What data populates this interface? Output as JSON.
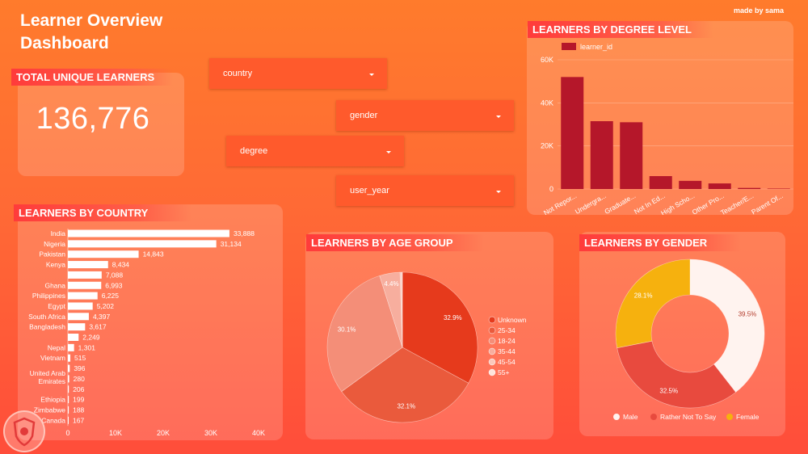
{
  "header": {
    "title_line1": "Learner Overview",
    "title_line2": "Dashboard",
    "made_by": "made by sama"
  },
  "kpi": {
    "label": "TOTAL UNIQUE LEARNERS",
    "value": "136,776"
  },
  "filters": {
    "country": "country",
    "gender": "gender",
    "degree": "degree",
    "user_year": "user_year"
  },
  "logo_icon": "shield-logo-icon",
  "colors": {
    "degree_bar": "#b5172a",
    "age": [
      "#e63a1c",
      "#ea5a3c",
      "#f48e78",
      "#f7ae9e",
      "#fac8bc",
      "#fde4dc"
    ],
    "gender": [
      "#fff3ef",
      "#e84a3e",
      "#f6b10e"
    ]
  },
  "chart_data": [
    {
      "id": "degree",
      "type": "bar",
      "title": "LEARNERS BY DEGREE LEVEL",
      "legend": [
        "learner_id"
      ],
      "categories": [
        "Not Repor...",
        "Undergra...",
        "Graduate...",
        "Not In Ed...",
        "High Scho...",
        "Other Pro...",
        "Teacher/E...",
        "Parent Of..."
      ],
      "values": [
        52000,
        31500,
        31000,
        6000,
        3800,
        2600,
        500,
        200
      ],
      "yticks": [
        "0",
        "20K",
        "40K",
        "60K"
      ],
      "ylim": [
        0,
        60000
      ],
      "grid": true
    },
    {
      "id": "country",
      "type": "bar",
      "orientation": "horizontal",
      "title": "LEARNERS BY COUNTRY",
      "categories": [
        "India",
        "Nigeria",
        "Pakistan",
        "Kenya",
        "",
        "Ghana",
        "Philippines",
        "Egypt",
        "South Africa",
        "Bangladesh",
        "",
        "Nepal",
        "Vietnam",
        "",
        "United Arab Emirates",
        "",
        "Ethiopia",
        "Zimbabwe",
        "Canada"
      ],
      "values": [
        33888,
        31134,
        14843,
        8434,
        7088,
        6993,
        6225,
        5202,
        4397,
        3617,
        2249,
        1301,
        515,
        396,
        280,
        206,
        199,
        188,
        167
      ],
      "labels": [
        "33,888",
        "31,134",
        "14,843",
        "8,434",
        "7,088",
        "6,993",
        "6,225",
        "5,202",
        "4,397",
        "3,617",
        "2,249",
        "1,301",
        "515",
        "396",
        "280",
        "206",
        "199",
        "188",
        "167"
      ],
      "xticks": [
        "0",
        "10K",
        "20K",
        "30K",
        "40K"
      ],
      "xlim": [
        0,
        40000
      ]
    },
    {
      "id": "age",
      "type": "pie",
      "title": "LEARNERS BY AGE GROUP",
      "legend": [
        "Unknown",
        "25-34",
        "18-24",
        "35-44",
        "45-54",
        "55+"
      ],
      "values": [
        32.9,
        32.1,
        30.1,
        4.4,
        0.4,
        0.1
      ],
      "labels": [
        "32.9%",
        "32.1%",
        "30.1%",
        "4.4%",
        "",
        ""
      ]
    },
    {
      "id": "gender",
      "type": "pie",
      "donut": true,
      "title": "LEARNERS BY GENDER",
      "legend": [
        "Male",
        "Rather Not To Say",
        "Female"
      ],
      "values": [
        39.5,
        32.5,
        28.1
      ],
      "labels": [
        "39.5%",
        "32.5%",
        "28.1%"
      ]
    }
  ]
}
